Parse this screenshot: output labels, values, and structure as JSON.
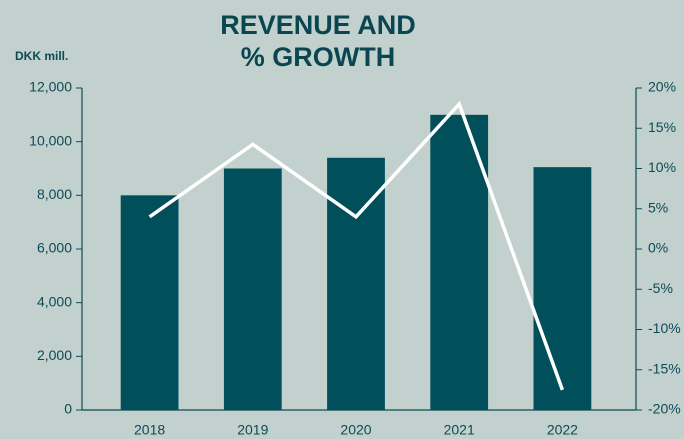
{
  "chart_data": {
    "type": "bar",
    "title": [
      "REVENUE AND",
      "% GROWTH"
    ],
    "y_label": "DKK mill.",
    "categories": [
      "2018",
      "2019",
      "2020",
      "2021",
      "2022"
    ],
    "series": [
      {
        "name": "Revenue",
        "type": "bar",
        "color": "#004f5a",
        "values": [
          8000,
          9000,
          9400,
          11000,
          9050
        ]
      },
      {
        "name": "% growth",
        "type": "line",
        "axis": "y2",
        "color": "#ffffff",
        "values": [
          4,
          13,
          4,
          18,
          -17.5
        ]
      }
    ],
    "ylim": [
      0,
      12000
    ],
    "yticks": [
      0,
      {
        "value": 2000,
        "label": "2,000"
      },
      {
        "value": 4000,
        "label": "4,000"
      },
      {
        "value": 6000,
        "label": "6,000"
      },
      {
        "value": 8000,
        "label": "8,000"
      },
      {
        "value": 10000,
        "label": "10,000"
      },
      {
        "value": 12000,
        "label": "12,000"
      }
    ],
    "y2lim": [
      -20,
      20
    ],
    "y2ticks": [
      {
        "value": -20,
        "label": "-20%"
      },
      {
        "value": -15,
        "label": "-15%"
      },
      {
        "value": -10,
        "label": "-10%"
      },
      {
        "value": -5,
        "label": "-5%"
      },
      {
        "value": 0,
        "label": "0%"
      },
      {
        "value": 5,
        "label": "5%"
      },
      {
        "value": 10,
        "label": "10%"
      },
      {
        "value": 15,
        "label": "15%"
      },
      {
        "value": 20,
        "label": "20%"
      }
    ]
  }
}
